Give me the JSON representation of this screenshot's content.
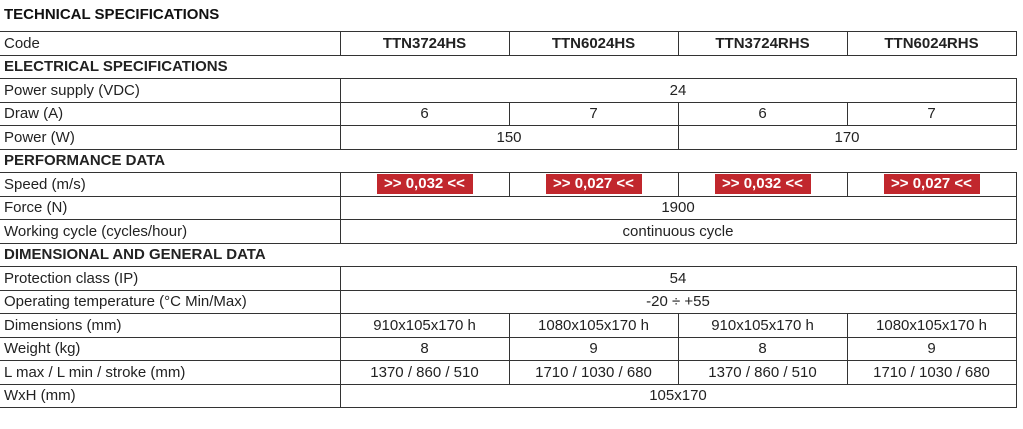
{
  "title": "TECHNICAL SPECIFICATIONS",
  "table": {
    "header": {
      "label": "Code",
      "cells": [
        "TTN3724HS",
        "TTN6024HS",
        "TTN3724RHS",
        "TTN6024RHS"
      ]
    },
    "sections": [
      {
        "title": "ELECTRICAL SPECIFICATIONS",
        "rows": [
          {
            "label": "Power supply (VDC)",
            "cells": [
              "24"
            ]
          },
          {
            "label": "Draw (A)",
            "cells": [
              "6",
              "7",
              "6",
              "7"
            ]
          },
          {
            "label": "Power (W)",
            "cells": [
              "150",
              "170"
            ]
          }
        ]
      },
      {
        "title": "PERFORMANCE DATA",
        "rows": [
          {
            "label": "Speed (m/s)",
            "cells": [
              ">> 0,032 <<",
              ">> 0,027 <<",
              ">> 0,032 <<",
              ">> 0,027 <<"
            ],
            "highlight": true
          },
          {
            "label": "Force (N)",
            "cells": [
              "1900"
            ]
          },
          {
            "label": "Working cycle (cycles/hour)",
            "cells": [
              "continuous cycle"
            ]
          }
        ]
      },
      {
        "title": "DIMENSIONAL AND GENERAL DATA",
        "rows": [
          {
            "label": "Protection class (IP)",
            "cells": [
              "54"
            ]
          },
          {
            "label": "Operating temperature (°C Min/Max)",
            "cells": [
              "-20 ÷ +55"
            ]
          },
          {
            "label": "Dimensions (mm)",
            "cells": [
              "910x105x170 h",
              "1080x105x170 h",
              "910x105x170 h",
              "1080x105x170 h"
            ]
          },
          {
            "label": "Weight (kg)",
            "cells": [
              "8",
              "9",
              "8",
              "9"
            ]
          },
          {
            "label": "L max / L min / stroke (mm)",
            "cells": [
              "1370 / 860 / 510",
              "1710 / 1030 / 680",
              "1370 / 860 / 510",
              "1710 / 1030 / 680"
            ]
          },
          {
            "label": "WxH (mm)",
            "cells": [
              "105x170"
            ]
          }
        ]
      }
    ]
  }
}
